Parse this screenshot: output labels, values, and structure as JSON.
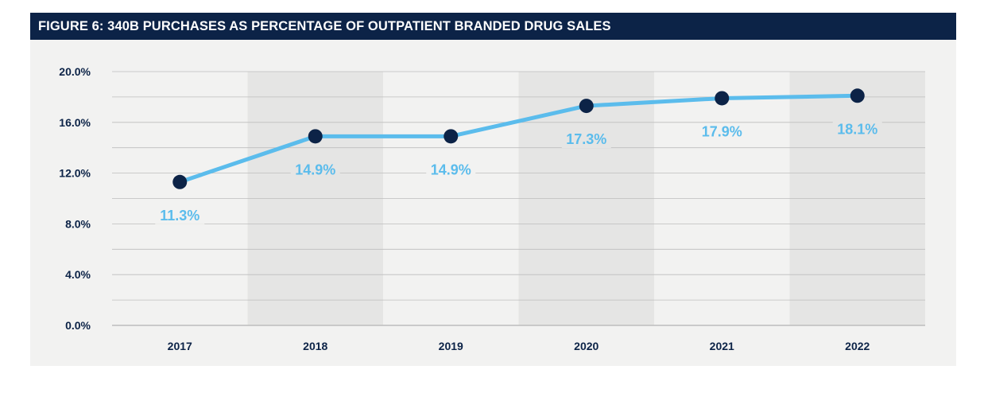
{
  "figure": {
    "title": "FIGURE 6: 340B PURCHASES AS PERCENTAGE OF OUTPATIENT BRANDED DRUG SALES"
  },
  "colors": {
    "title_bar": "#0c2347",
    "background": "#f2f2f1",
    "shaded_band": "#e5e5e4",
    "line": "#5bbcec",
    "marker": "#0c2347",
    "data_label": "#5bbcec",
    "tick_text": "#0c2347",
    "grid": "#bdbdbd"
  },
  "chart_data": {
    "type": "line",
    "title": "FIGURE 6: 340B PURCHASES AS PERCENTAGE OF OUTPATIENT BRANDED DRUG SALES",
    "categories": [
      "2017",
      "2018",
      "2019",
      "2020",
      "2021",
      "2022"
    ],
    "series": [
      {
        "values": [
          11.3,
          14.9,
          14.9,
          17.3,
          17.9,
          18.1
        ]
      }
    ],
    "data_labels": [
      "11.3%",
      "14.9%",
      "14.9%",
      "17.3%",
      "17.9%",
      "18.1%"
    ],
    "ylim": [
      0,
      20
    ],
    "yticks": [
      0,
      4,
      8,
      12,
      16,
      20
    ],
    "ytick_labels": [
      "0.0%",
      "4.0%",
      "8.0%",
      "12.0%",
      "16.0%",
      "20.0%"
    ],
    "shaded_categories": [
      "2018",
      "2020",
      "2022"
    ],
    "grid": true,
    "legend": false
  }
}
